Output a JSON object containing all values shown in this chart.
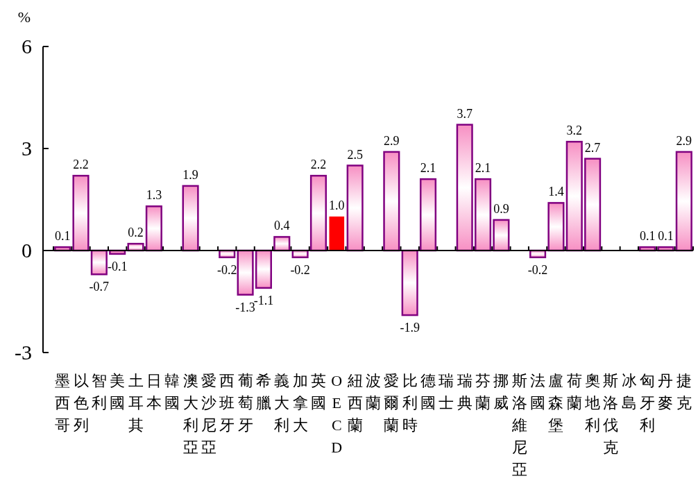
{
  "chart_data": {
    "type": "bar",
    "ylabel": "%",
    "categories": [
      "墨西哥",
      "以色列",
      "智利",
      "美國",
      "土耳其",
      "日本",
      "韓國",
      "澳大利亞",
      "愛沙尼亞",
      "西班牙",
      "葡萄牙",
      "希臘",
      "義大利",
      "加拿大",
      "英國",
      "OECD",
      "紐西蘭",
      "波蘭",
      "愛爾蘭",
      "比利時",
      "德國",
      "瑞士",
      "瑞典",
      "芬蘭",
      "挪威",
      "斯洛維尼亞",
      "法國",
      "盧森堡",
      "荷蘭",
      "奧地利",
      "斯洛伐克",
      "冰島",
      "匈牙利",
      "丹麥",
      "捷克"
    ],
    "values": [
      0.1,
      2.2,
      -0.7,
      -0.1,
      0.2,
      1.3,
      null,
      1.9,
      null,
      -0.2,
      -1.3,
      -1.1,
      0.4,
      -0.2,
      2.2,
      1.0,
      2.5,
      null,
      2.9,
      -1.9,
      2.1,
      null,
      3.7,
      2.1,
      0.9,
      null,
      -0.2,
      1.4,
      3.2,
      2.7,
      null,
      null,
      0.1,
      0.1,
      2.9
    ],
    "colors": [
      "#f78fc3",
      "#f78fc3",
      "#f78fc3",
      "#f78fc3",
      "#f78fc3",
      "#f78fc3",
      null,
      "#f78fc3",
      null,
      "#f78fc3",
      "#f78fc3",
      "#f78fc3",
      "#f78fc3",
      "#f78fc3",
      "#f78fc3",
      "#ff0000",
      "#f78fc3",
      null,
      "#f78fc3",
      "#f78fc3",
      "#f78fc3",
      null,
      "#f78fc3",
      "#f78fc3",
      "#f78fc3",
      null,
      "#f78fc3",
      "#f78fc3",
      "#f78fc3",
      "#f78fc3",
      null,
      null,
      "#f78fc3",
      "#f78fc3",
      "#f78fc3"
    ],
    "value_labels": [
      "0.1",
      "2.2",
      "-0.7",
      "-0.1",
      "0.2",
      "1.3",
      null,
      "1.9",
      null,
      "-0.2",
      "-1.3",
      "-1.1",
      "0.4",
      "-0.2",
      "2.2",
      "1.0",
      "2.5",
      null,
      "2.9",
      "-1.9",
      "2.1",
      null,
      "3.7",
      "2.1",
      "0.9",
      null,
      "-0.2",
      "1.4",
      "3.2",
      "2.7",
      null,
      null,
      "0.1",
      "0.1",
      "2.9"
    ],
    "ylim": [
      -3,
      6
    ],
    "yticks": [
      -3,
      0,
      3,
      6
    ]
  }
}
